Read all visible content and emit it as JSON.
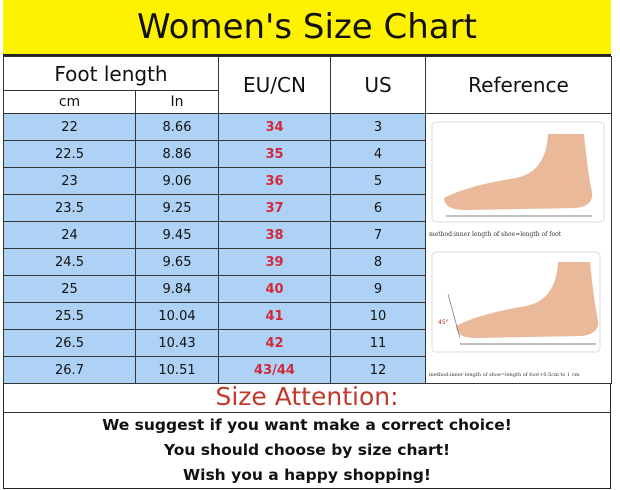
{
  "title": "Women's Size Chart",
  "headers": {
    "foot_length": "Foot length",
    "cm": "cm",
    "in": "In",
    "eu_cn": "EU/CN",
    "us": "US",
    "reference": "Reference"
  },
  "rows": [
    {
      "cm": "22",
      "in": "8.66",
      "eu": "34",
      "us": "3"
    },
    {
      "cm": "22.5",
      "in": "8.86",
      "eu": "35",
      "us": "4"
    },
    {
      "cm": "23",
      "in": "9.06",
      "eu": "36",
      "us": "5"
    },
    {
      "cm": "23.5",
      "in": "9.25",
      "eu": "37",
      "us": "6"
    },
    {
      "cm": "24",
      "in": "9.45",
      "eu": "38",
      "us": "7"
    },
    {
      "cm": "24.5",
      "in": "9.65",
      "eu": "39",
      "us": "8"
    },
    {
      "cm": "25",
      "in": "9.84",
      "eu": "40",
      "us": "9"
    },
    {
      "cm": "25.5",
      "in": "10.04",
      "eu": "41",
      "us": "10"
    },
    {
      "cm": "26.5",
      "in": "10.43",
      "eu": "42",
      "us": "11"
    },
    {
      "cm": "26.7",
      "in": "10.51",
      "eu": "43/44",
      "us": "12"
    }
  ],
  "reference": {
    "caption_1": "method:inner length of shoe=length of foot",
    "caption_2": "method:inner length of shoe=length of foot+0.5cm to 1 cm",
    "angle_label": "45°"
  },
  "attention": {
    "heading": "Size Attention:",
    "lines": [
      "We suggest if you want make a correct choice!",
      "You should choose by size chart!",
      "Wish you a happy shopping!"
    ]
  },
  "colors": {
    "title_bg": "#fff200",
    "row_bg": "#aed2f6",
    "eu_text": "#d2283c",
    "attention_text": "#c0392b"
  }
}
